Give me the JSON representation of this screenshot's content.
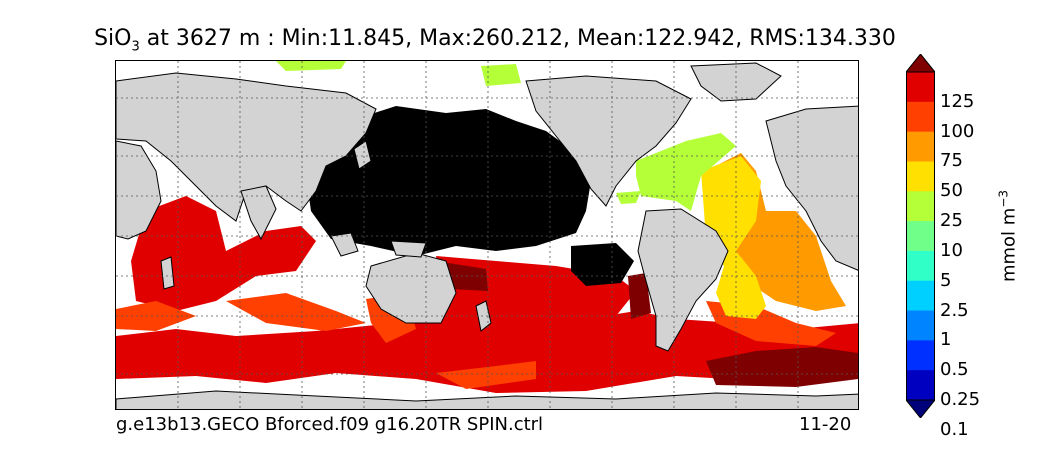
{
  "title": {
    "variable": "SiO",
    "subscript": "3",
    "rest": " at 3627 m : Min:11.845, Max:260.212, Mean:122.942, RMS:134.330"
  },
  "footer": {
    "case_name": "g.e13b13.GECO Bforced.f09 g16.20TR SPIN.ctrl",
    "years": "11-20"
  },
  "colorbar": {
    "unit_main": "mmol m",
    "unit_exp": "−3",
    "ticks": [
      "125",
      "100",
      "75",
      "50",
      "25",
      "10",
      "5",
      "2.5",
      "1",
      "0.5",
      "0.25",
      "0.1"
    ],
    "colors": [
      "#7f0000",
      "#e00000",
      "#ff4000",
      "#ff9a00",
      "#ffe000",
      "#b4ff38",
      "#70ff88",
      "#30ffc8",
      "#00d0ff",
      "#0084ff",
      "#0030ff",
      "#0000c0",
      "#00007a"
    ]
  },
  "map": {
    "land_color": "#d3d3d3",
    "missing_color": "#ffffff",
    "over_color": "#000000"
  }
}
